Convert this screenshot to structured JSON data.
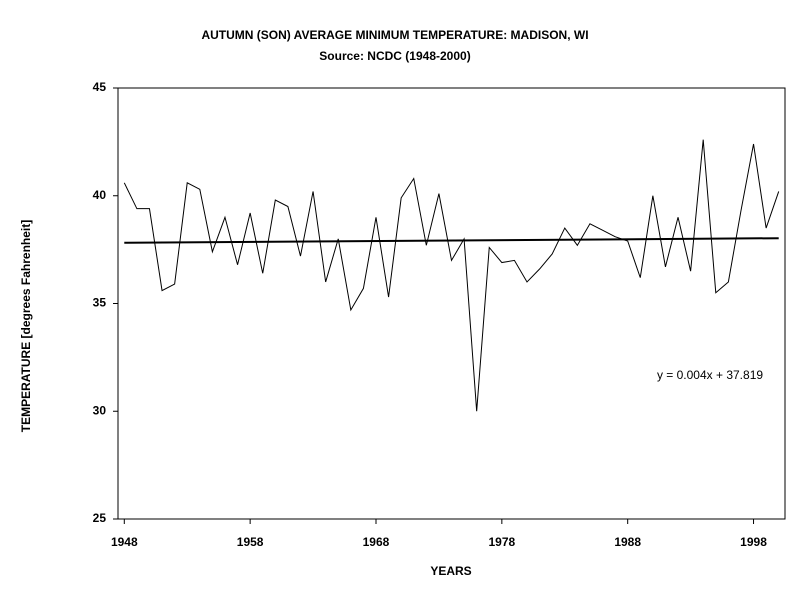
{
  "chart_data": {
    "type": "line",
    "title": "AUTUMN (SON) AVERAGE MINIMUM TEMPERATURE: MADISON, WI",
    "subtitle": "Source: NCDC (1948-2000)",
    "xlabel": "YEARS",
    "ylabel": "TEMPERATURE [degrees Fahrenheit]",
    "annotation": "y = 0.004x + 37.819",
    "x": [
      1948,
      1949,
      1950,
      1951,
      1952,
      1953,
      1954,
      1955,
      1956,
      1957,
      1958,
      1959,
      1960,
      1961,
      1962,
      1963,
      1964,
      1965,
      1966,
      1967,
      1968,
      1969,
      1970,
      1971,
      1972,
      1973,
      1974,
      1975,
      1976,
      1977,
      1978,
      1979,
      1980,
      1981,
      1982,
      1983,
      1984,
      1985,
      1986,
      1987,
      1988,
      1989,
      1990,
      1991,
      1992,
      1993,
      1994,
      1995,
      1996,
      1997,
      1998,
      1999,
      2000
    ],
    "series": [
      {
        "color": "#000000",
        "values": [
          40.6,
          39.4,
          39.4,
          35.6,
          35.9,
          40.6,
          40.3,
          37.4,
          39.0,
          36.8,
          39.2,
          36.4,
          39.8,
          39.5,
          37.2,
          40.2,
          36.0,
          38.0,
          34.7,
          35.7,
          39.0,
          35.3,
          39.9,
          40.8,
          37.7,
          40.1,
          37.0,
          38.0,
          30.0,
          37.6,
          36.9,
          37.0,
          36.0,
          36.6,
          37.3,
          38.5,
          37.7,
          38.7,
          38.4,
          38.1,
          37.9,
          36.2,
          40.0,
          36.7,
          39.0,
          36.5,
          42.6,
          35.5,
          36.0,
          39.3,
          42.4,
          38.5,
          40.2
        ]
      }
    ],
    "trendline": {
      "x": [
        1948,
        2000
      ],
      "values": [
        37.82,
        38.03
      ],
      "color": "#000000"
    },
    "xlim": [
      1947.5,
      2000.5
    ],
    "ylim": [
      25,
      45
    ],
    "xticks": [
      1948,
      1958,
      1968,
      1978,
      1988,
      1998
    ],
    "yticks": [
      25,
      30,
      35,
      40,
      45
    ],
    "grid": false
  }
}
